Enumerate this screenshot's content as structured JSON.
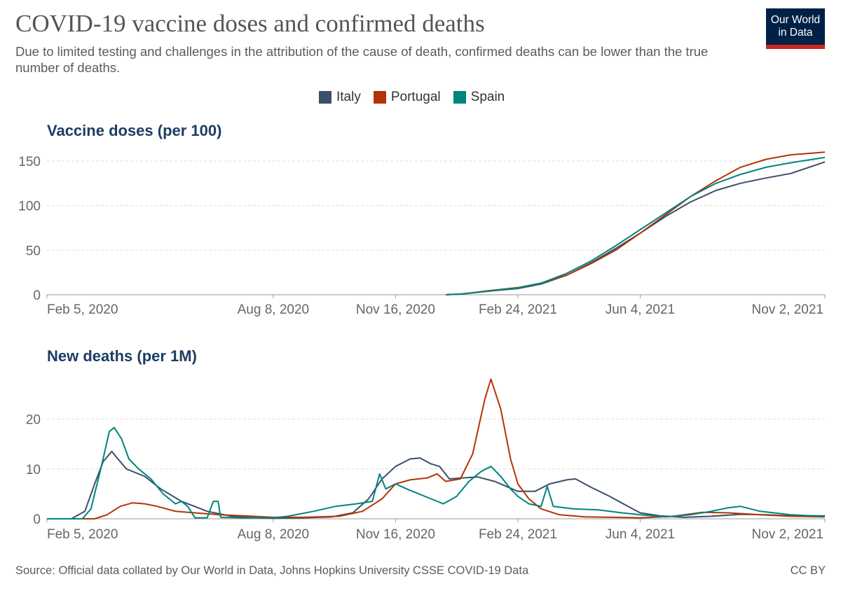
{
  "header": {
    "title": "COVID-19 vaccine doses and confirmed deaths",
    "subtitle": "Due to limited testing and challenges in the attribution of the cause of death, confirmed deaths can be lower than the true number of deaths.",
    "logo_line1": "Our World",
    "logo_line2": "in Data"
  },
  "legend": [
    {
      "name": "Italy",
      "color": "#3c4e6a"
    },
    {
      "name": "Portugal",
      "color": "#b13507"
    },
    {
      "name": "Spain",
      "color": "#00847e"
    }
  ],
  "footer": {
    "source": "Source: Official data collated by Our World in Data, Johns Hopkins University CSSE COVID-19 Data",
    "license": "CC BY"
  },
  "chart_data": [
    {
      "type": "line",
      "title": "Vaccine doses (per 100)",
      "x_ticks": [
        "2020-02-05",
        "2020-08-08",
        "2020-11-16",
        "2021-02-24",
        "2021-06-04",
        "2021-11-02"
      ],
      "x_tick_labels": [
        "Feb 5, 2020",
        "Aug 8, 2020",
        "Nov 16, 2020",
        "Feb 24, 2021",
        "Jun 4, 2021",
        "Nov 2, 2021"
      ],
      "xlim": [
        "2020-02-05",
        "2021-11-02"
      ],
      "ylim": [
        0,
        150
      ],
      "y_ticks": [
        0,
        50,
        100,
        150
      ],
      "grid": true,
      "series": [
        {
          "name": "Italy",
          "color": "#3c4e6a",
          "points": [
            [
              "2020-12-27",
              0
            ],
            [
              "2021-01-10",
              1
            ],
            [
              "2021-01-31",
              4
            ],
            [
              "2021-02-24",
              7
            ],
            [
              "2021-03-15",
              12
            ],
            [
              "2021-04-05",
              22
            ],
            [
              "2021-04-25",
              36
            ],
            [
              "2021-05-15",
              52
            ],
            [
              "2021-06-04",
              69
            ],
            [
              "2021-06-25",
              88
            ],
            [
              "2021-07-15",
              104
            ],
            [
              "2021-08-05",
              117
            ],
            [
              "2021-08-25",
              125
            ],
            [
              "2021-09-15",
              131
            ],
            [
              "2021-10-05",
              136
            ],
            [
              "2021-11-02",
              149
            ]
          ]
        },
        {
          "name": "Portugal",
          "color": "#b13507",
          "points": [
            [
              "2020-12-27",
              0
            ],
            [
              "2021-01-10",
              1
            ],
            [
              "2021-01-31",
              4.5
            ],
            [
              "2021-02-24",
              8
            ],
            [
              "2021-03-15",
              13
            ],
            [
              "2021-04-05",
              22
            ],
            [
              "2021-04-25",
              35
            ],
            [
              "2021-05-15",
              50
            ],
            [
              "2021-06-04",
              69
            ],
            [
              "2021-06-25",
              90
            ],
            [
              "2021-07-15",
              110
            ],
            [
              "2021-08-05",
              128
            ],
            [
              "2021-08-25",
              143
            ],
            [
              "2021-09-15",
              152
            ],
            [
              "2021-10-05",
              157
            ],
            [
              "2021-11-02",
              160
            ]
          ]
        },
        {
          "name": "Spain",
          "color": "#00847e",
          "points": [
            [
              "2020-12-27",
              0
            ],
            [
              "2021-01-10",
              1
            ],
            [
              "2021-01-31",
              4
            ],
            [
              "2021-02-24",
              7.5
            ],
            [
              "2021-03-15",
              13
            ],
            [
              "2021-04-05",
              24
            ],
            [
              "2021-04-25",
              38
            ],
            [
              "2021-05-15",
              55
            ],
            [
              "2021-06-04",
              73
            ],
            [
              "2021-06-25",
              92
            ],
            [
              "2021-07-15",
              110
            ],
            [
              "2021-08-05",
              125
            ],
            [
              "2021-08-25",
              135
            ],
            [
              "2021-09-15",
              143
            ],
            [
              "2021-10-05",
              148
            ],
            [
              "2021-11-02",
              154
            ]
          ]
        }
      ]
    },
    {
      "type": "line",
      "title": "New deaths (per 1M)",
      "x_ticks": [
        "2020-02-05",
        "2020-08-08",
        "2020-11-16",
        "2021-02-24",
        "2021-06-04",
        "2021-11-02"
      ],
      "x_tick_labels": [
        "Feb 5, 2020",
        "Aug 8, 2020",
        "Nov 16, 2020",
        "Feb 24, 2021",
        "Jun 4, 2021",
        "Nov 2, 2021"
      ],
      "xlim": [
        "2020-02-05",
        "2021-11-02"
      ],
      "ylim": [
        0,
        28.5
      ],
      "y_ticks": [
        0,
        10,
        20
      ],
      "grid": true,
      "series": [
        {
          "name": "Italy",
          "color": "#3c4e6a",
          "points": [
            [
              "2020-02-05",
              0
            ],
            [
              "2020-02-25",
              0
            ],
            [
              "2020-03-07",
              1.5
            ],
            [
              "2020-03-15",
              7
            ],
            [
              "2020-03-22",
              11.5
            ],
            [
              "2020-03-29",
              13.5
            ],
            [
              "2020-04-03",
              12
            ],
            [
              "2020-04-10",
              10
            ],
            [
              "2020-04-25",
              8.5
            ],
            [
              "2020-05-08",
              6
            ],
            [
              "2020-05-25",
              3.5
            ],
            [
              "2020-06-15",
              1.5
            ],
            [
              "2020-07-05",
              0.5
            ],
            [
              "2020-07-25",
              0.2
            ],
            [
              "2020-08-08",
              0.1
            ],
            [
              "2020-09-01",
              0.2
            ],
            [
              "2020-09-25",
              0.4
            ],
            [
              "2020-10-12",
              1.2
            ],
            [
              "2020-10-25",
              4
            ],
            [
              "2020-11-05",
              8
            ],
            [
              "2020-11-16",
              10.5
            ],
            [
              "2020-11-28",
              12
            ],
            [
              "2020-12-06",
              12.2
            ],
            [
              "2020-12-15",
              11
            ],
            [
              "2020-12-22",
              10.5
            ],
            [
              "2020-12-30",
              8
            ],
            [
              "2021-01-10",
              8.2
            ],
            [
              "2021-01-22",
              8.4
            ],
            [
              "2021-02-05",
              7.5
            ],
            [
              "2021-02-24",
              5.5
            ],
            [
              "2021-03-10",
              5.5
            ],
            [
              "2021-03-22",
              7
            ],
            [
              "2021-04-05",
              7.8
            ],
            [
              "2021-04-12",
              8
            ],
            [
              "2021-04-25",
              6.3
            ],
            [
              "2021-05-10",
              4.5
            ],
            [
              "2021-05-25",
              2.5
            ],
            [
              "2021-06-04",
              1.2
            ],
            [
              "2021-06-20",
              0.6
            ],
            [
              "2021-07-10",
              0.3
            ],
            [
              "2021-08-01",
              0.5
            ],
            [
              "2021-08-25",
              0.9
            ],
            [
              "2021-09-15",
              0.8
            ],
            [
              "2021-10-05",
              0.6
            ],
            [
              "2021-11-02",
              0.6
            ]
          ]
        },
        {
          "name": "Portugal",
          "color": "#b13507",
          "points": [
            [
              "2020-02-05",
              0
            ],
            [
              "2020-03-15",
              0
            ],
            [
              "2020-03-25",
              0.8
            ],
            [
              "2020-04-05",
              2.5
            ],
            [
              "2020-04-15",
              3.2
            ],
            [
              "2020-04-25",
              3
            ],
            [
              "2020-05-05",
              2.5
            ],
            [
              "2020-05-20",
              1.5
            ],
            [
              "2020-06-05",
              1.2
            ],
            [
              "2020-06-25",
              0.8
            ],
            [
              "2020-07-15",
              0.6
            ],
            [
              "2020-08-08",
              0.3
            ],
            [
              "2020-09-01",
              0.3
            ],
            [
              "2020-10-01",
              0.5
            ],
            [
              "2020-10-20",
              1.5
            ],
            [
              "2020-11-05",
              4
            ],
            [
              "2020-11-16",
              7
            ],
            [
              "2020-11-28",
              7.8
            ],
            [
              "2020-12-12",
              8.2
            ],
            [
              "2020-12-20",
              9
            ],
            [
              "2020-12-27",
              7.5
            ],
            [
              "2021-01-08",
              8
            ],
            [
              "2021-01-18",
              13
            ],
            [
              "2021-01-28",
              24
            ],
            [
              "2021-02-02",
              28
            ],
            [
              "2021-02-10",
              22
            ],
            [
              "2021-02-18",
              12
            ],
            [
              "2021-02-24",
              7
            ],
            [
              "2021-03-05",
              4
            ],
            [
              "2021-03-15",
              2
            ],
            [
              "2021-03-30",
              0.8
            ],
            [
              "2021-04-20",
              0.4
            ],
            [
              "2021-06-04",
              0.2
            ],
            [
              "2021-07-01",
              0.5
            ],
            [
              "2021-07-25",
              1.3
            ],
            [
              "2021-08-15",
              1.2
            ],
            [
              "2021-09-10",
              0.8
            ],
            [
              "2021-10-05",
              0.5
            ],
            [
              "2021-11-02",
              0.4
            ]
          ]
        },
        {
          "name": "Spain",
          "color": "#00847e",
          "points": [
            [
              "2020-02-05",
              0
            ],
            [
              "2020-03-05",
              0
            ],
            [
              "2020-03-12",
              2
            ],
            [
              "2020-03-20",
              10
            ],
            [
              "2020-03-27",
              17.5
            ],
            [
              "2020-03-31",
              18.3
            ],
            [
              "2020-04-06",
              16
            ],
            [
              "2020-04-12",
              12
            ],
            [
              "2020-04-20",
              10
            ],
            [
              "2020-04-30",
              8
            ],
            [
              "2020-05-10",
              5
            ],
            [
              "2020-05-20",
              3
            ],
            [
              "2020-05-25",
              3.5
            ],
            [
              "2020-05-30",
              2.5
            ],
            [
              "2020-06-05",
              0.2
            ],
            [
              "2020-06-15",
              0.2
            ],
            [
              "2020-06-20",
              3.5
            ],
            [
              "2020-06-24",
              3.5
            ],
            [
              "2020-06-26",
              0.3
            ],
            [
              "2020-07-15",
              0.2
            ],
            [
              "2020-08-08",
              0.2
            ],
            [
              "2020-08-20",
              0.5
            ],
            [
              "2020-09-10",
              1.5
            ],
            [
              "2020-09-28",
              2.5
            ],
            [
              "2020-10-15",
              3
            ],
            [
              "2020-10-28",
              3.5
            ],
            [
              "2020-11-03",
              9
            ],
            [
              "2020-11-08",
              6
            ],
            [
              "2020-11-16",
              7
            ],
            [
              "2020-11-25",
              6
            ],
            [
              "2020-12-05",
              5
            ],
            [
              "2020-12-15",
              4
            ],
            [
              "2020-12-25",
              3
            ],
            [
              "2021-01-05",
              4.5
            ],
            [
              "2021-01-15",
              7.5
            ],
            [
              "2021-01-25",
              9.5
            ],
            [
              "2021-02-02",
              10.5
            ],
            [
              "2021-02-10",
              8.5
            ],
            [
              "2021-02-18",
              6
            ],
            [
              "2021-02-24",
              4.5
            ],
            [
              "2021-03-05",
              3
            ],
            [
              "2021-03-15",
              2.5
            ],
            [
              "2021-03-20",
              6.5
            ],
            [
              "2021-03-25",
              2.5
            ],
            [
              "2021-04-10",
              2
            ],
            [
              "2021-05-01",
              1.8
            ],
            [
              "2021-05-20",
              1.2
            ],
            [
              "2021-06-04",
              0.8
            ],
            [
              "2021-06-25",
              0.4
            ],
            [
              "2021-07-15",
              0.8
            ],
            [
              "2021-08-01",
              1.5
            ],
            [
              "2021-08-15",
              2.2
            ],
            [
              "2021-08-25",
              2.5
            ],
            [
              "2021-09-10",
              1.5
            ],
            [
              "2021-10-05",
              0.8
            ],
            [
              "2021-11-02",
              0.5
            ]
          ]
        }
      ]
    }
  ]
}
